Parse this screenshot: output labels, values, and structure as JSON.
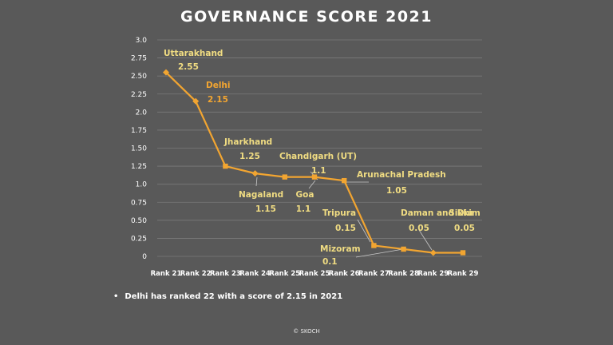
{
  "title": "GOVERNANCE SCORE 2021",
  "note": "Delhi has ranked 22 with a score of 2.15 in 2021",
  "credit": "© SKOCH",
  "colors": {
    "background": "#595959",
    "line": "#f2a531",
    "label": "#f0dc82",
    "delhi_label": "#f2a531",
    "grid": "#7a7a7a",
    "axis_text": "#ffffff"
  },
  "chart_data": {
    "type": "line",
    "title": "GOVERNANCE SCORE 2021",
    "categories": [
      "Rank 21",
      "Rank 22",
      "Rank 23",
      "Rank 24",
      "Rank 25",
      "Rank 25",
      "Rank 26",
      "Rank 27",
      "Rank 28",
      "Rank 29",
      "Rank 29"
    ],
    "values": [
      2.55,
      2.15,
      1.25,
      1.15,
      1.1,
      1.1,
      1.05,
      0.15,
      0.1,
      0.05,
      0.05
    ],
    "point_labels": [
      "Uttarakhand",
      "Delhi",
      "Jharkhand",
      "Nagaland",
      "Chandigarh (UT)",
      "Goa",
      "Arunachal Pradesh",
      "Tripura",
      "Mizoram",
      "Daman and Diu",
      "Sikkim"
    ],
    "value_labels": [
      "2.55",
      "2.15",
      "1.25",
      "1.15",
      "1.1",
      "1.1",
      "1.05",
      "0.15",
      "0.1",
      "0.05",
      "0.05"
    ],
    "yticks": [
      "0",
      "0.25",
      "0.50",
      "0.75",
      "1.0",
      "1.25",
      "1.50",
      "1.75",
      "2.0",
      "2.25",
      "2.50",
      "2.75",
      "3.0"
    ],
    "ylim": [
      0,
      3.0
    ],
    "grid": true,
    "legend": "none",
    "highlight": "Delhi"
  }
}
